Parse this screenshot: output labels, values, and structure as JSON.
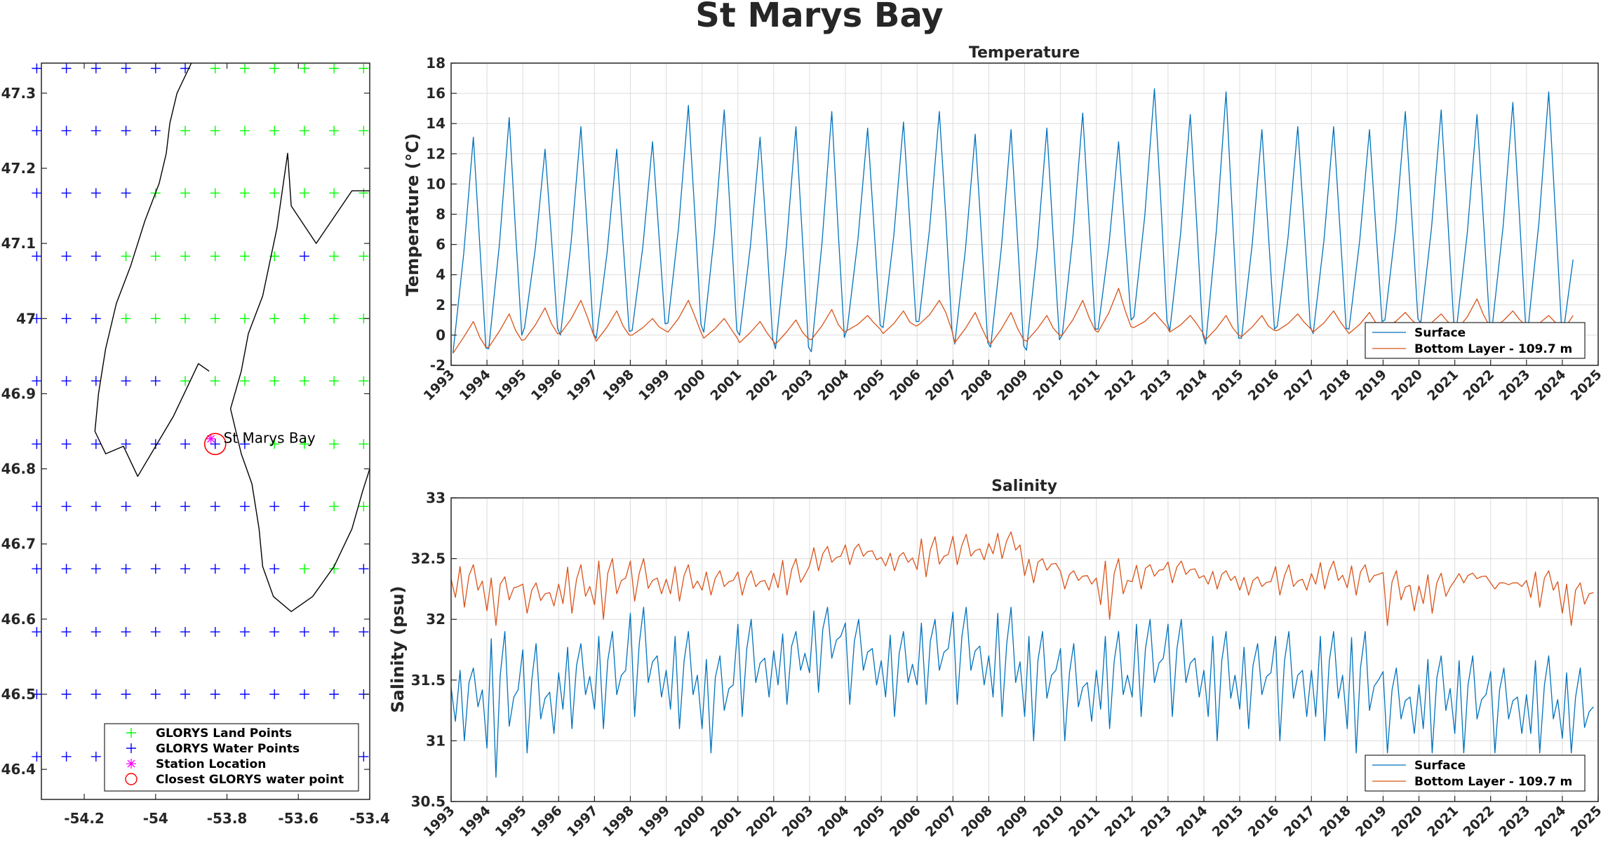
{
  "figure_title": "St Marys Bay",
  "colors": {
    "surface": "#0072BD",
    "bottom": "#D95319",
    "land": "#00FF00",
    "water": "#0000FF",
    "station": "#FF00FF",
    "closest": "#FF0000"
  },
  "chart_data": [
    {
      "type": "scatter",
      "xticks": [
        "-54.2",
        "-54",
        "-53.8",
        "-53.6",
        "-53.4"
      ],
      "yticks": [
        "47.3",
        "47.2",
        "47.1",
        "47",
        "46.9",
        "46.8",
        "46.7",
        "46.6",
        "46.5",
        "46.4"
      ],
      "xlim": [
        -54.32,
        -53.4
      ],
      "ylim": [
        46.36,
        47.34
      ],
      "grid": false,
      "legend_position": "bottom-right",
      "station_label": "St Marys Bay",
      "station": {
        "lon": -53.845,
        "lat": 46.84
      },
      "closest_point": {
        "lon": -53.833,
        "lat": 46.833
      },
      "grid_lons": [
        -54.333,
        -54.25,
        -54.167,
        -54.083,
        -54.0,
        -53.917,
        -53.833,
        -53.75,
        -53.667,
        -53.583,
        -53.5,
        -53.417
      ],
      "grid_lats": [
        47.333,
        47.25,
        47.167,
        47.083,
        47.0,
        46.917,
        46.833,
        46.75,
        46.667,
        46.583,
        46.5,
        46.417
      ],
      "land_mask": [
        [
          0,
          0,
          0,
          0,
          0,
          0,
          1,
          1,
          1,
          1,
          1,
          1
        ],
        [
          0,
          0,
          0,
          0,
          0,
          1,
          1,
          1,
          1,
          1,
          1,
          1
        ],
        [
          0,
          0,
          0,
          0,
          1,
          1,
          1,
          1,
          1,
          1,
          1,
          1
        ],
        [
          0,
          0,
          0,
          1,
          1,
          1,
          1,
          1,
          1,
          0,
          1,
          1
        ],
        [
          0,
          0,
          0,
          1,
          1,
          1,
          1,
          1,
          1,
          1,
          1,
          1
        ],
        [
          0,
          0,
          0,
          0,
          0,
          1,
          1,
          1,
          1,
          1,
          1,
          1
        ],
        [
          0,
          0,
          0,
          0,
          0,
          0,
          0,
          0,
          1,
          1,
          1,
          1
        ],
        [
          0,
          0,
          0,
          0,
          0,
          0,
          0,
          0,
          0,
          0,
          1,
          1
        ],
        [
          0,
          0,
          0,
          0,
          0,
          0,
          0,
          0,
          0,
          1,
          1,
          0
        ],
        [
          0,
          0,
          0,
          0,
          0,
          0,
          0,
          0,
          0,
          0,
          0,
          0
        ],
        [
          0,
          0,
          0,
          0,
          0,
          0,
          0,
          0,
          0,
          0,
          0,
          0
        ],
        [
          0,
          0,
          0,
          0,
          0,
          0,
          0,
          0,
          0,
          0,
          0,
          0
        ]
      ],
      "coastline_west": [
        [
          -53.9,
          47.34
        ],
        [
          -53.94,
          47.3
        ],
        [
          -53.96,
          47.26
        ],
        [
          -53.97,
          47.22
        ],
        [
          -53.99,
          47.18
        ],
        [
          -54.03,
          47.13
        ],
        [
          -54.07,
          47.07
        ],
        [
          -54.11,
          47.02
        ],
        [
          -54.14,
          46.96
        ],
        [
          -54.16,
          46.9
        ],
        [
          -54.17,
          46.85
        ],
        [
          -54.14,
          46.82
        ],
        [
          -54.09,
          46.83
        ],
        [
          -54.05,
          46.79
        ],
        [
          -54.0,
          46.83
        ],
        [
          -53.95,
          46.87
        ],
        [
          -53.92,
          46.9
        ],
        [
          -53.88,
          46.94
        ],
        [
          -53.85,
          46.93
        ]
      ],
      "coastline_east": [
        [
          -53.4,
          47.17
        ],
        [
          -53.45,
          47.17
        ],
        [
          -53.55,
          47.1
        ],
        [
          -53.62,
          47.15
        ],
        [
          -53.63,
          47.22
        ],
        [
          -53.66,
          47.12
        ],
        [
          -53.7,
          47.03
        ],
        [
          -53.74,
          46.98
        ],
        [
          -53.76,
          46.93
        ],
        [
          -53.79,
          46.88
        ],
        [
          -53.76,
          46.82
        ],
        [
          -53.73,
          46.78
        ],
        [
          -53.71,
          46.72
        ],
        [
          -53.7,
          46.67
        ],
        [
          -53.67,
          46.63
        ],
        [
          -53.62,
          46.61
        ],
        [
          -53.56,
          46.63
        ],
        [
          -53.5,
          46.67
        ],
        [
          -53.45,
          46.72
        ],
        [
          -53.42,
          46.77
        ],
        [
          -53.4,
          46.8
        ]
      ],
      "legend": [
        "GLORYS Land Points",
        "GLORYS Water Points",
        "Station Location",
        "Closest GLORYS water point"
      ]
    },
    {
      "type": "line",
      "title": "Temperature",
      "ylabel": "Temperature (°C)",
      "xlim": [
        1993,
        2025
      ],
      "ylim": [
        -2,
        18
      ],
      "yticks": [
        "18",
        "16",
        "14",
        "12",
        "10",
        "8",
        "6",
        "4",
        "2",
        "0",
        "-2"
      ],
      "xticks": [
        "1993",
        "1994",
        "1995",
        "1996",
        "1997",
        "1998",
        "1999",
        "2000",
        "2001",
        "2002",
        "2003",
        "2004",
        "2005",
        "2006",
        "2007",
        "2008",
        "2009",
        "2010",
        "2011",
        "2012",
        "2013",
        "2014",
        "2015",
        "2016",
        "2017",
        "2018",
        "2019",
        "2020",
        "2021",
        "2022",
        "2023",
        "2024",
        "2025"
      ],
      "grid": true,
      "legend_position": "bottom-right",
      "series": [
        {
          "name": "Surface",
          "annual_max": [
            13.1,
            14.4,
            12.3,
            13.8,
            12.3,
            12.8,
            15.2,
            14.9,
            13.1,
            13.8,
            14.8,
            13.7,
            14.1,
            14.8,
            13.3,
            13.6,
            13.7,
            14.7,
            12.8,
            16.3,
            14.6,
            16.1,
            13.6,
            13.8,
            13.8,
            13.6,
            14.8,
            14.9,
            14.6,
            15.4,
            16.1
          ],
          "annual_min": [
            -1.2,
            -0.9,
            0.5,
            0.0,
            -0.2,
            0.3,
            0.8,
            0.2,
            0.0,
            -0.9,
            -1.1,
            0.4,
            0.5,
            0.9,
            -0.6,
            -0.8,
            -1.0,
            0.0,
            0.4,
            1.2,
            0.3,
            -0.6,
            -0.2,
            0.6,
            0.1,
            0.4,
            1.0,
            0.8,
            0.5,
            0.7,
            0.6
          ],
          "end_value": 5.0
        },
        {
          "name": "Bottom Layer - 109.7 m",
          "annual_max": [
            0.9,
            1.4,
            1.8,
            2.3,
            1.6,
            1.1,
            2.3,
            1.1,
            0.9,
            1.0,
            1.7,
            1.3,
            1.6,
            2.3,
            1.5,
            1.5,
            1.3,
            2.3,
            3.1,
            1.5,
            1.3,
            1.3,
            1.3,
            1.4,
            1.6,
            1.5,
            1.5,
            1.4,
            2.4,
            1.6,
            1.3
          ],
          "annual_min": [
            -1.2,
            -0.8,
            -0.3,
            0.1,
            -0.4,
            0.0,
            0.2,
            -0.2,
            -0.5,
            -0.6,
            -0.3,
            0.3,
            0.1,
            0.7,
            -0.5,
            -0.6,
            -0.4,
            0.0,
            0.2,
            0.5,
            0.2,
            -0.3,
            -0.1,
            0.3,
            0.2,
            0.1,
            0.5,
            0.4,
            0.3,
            0.5,
            0.4
          ],
          "end_value": 1.3
        }
      ]
    },
    {
      "type": "line",
      "title": "Salinity",
      "ylabel": "Salinity (psu)",
      "xlim": [
        1993,
        2025
      ],
      "ylim": [
        30.5,
        33
      ],
      "yticks": [
        "33",
        "32.5",
        "32",
        "31.5",
        "31",
        "30.5"
      ],
      "xticks": [
        "1993",
        "1994",
        "1995",
        "1996",
        "1997",
        "1998",
        "1999",
        "2000",
        "2001",
        "2002",
        "2003",
        "2004",
        "2005",
        "2006",
        "2007",
        "2008",
        "2009",
        "2010",
        "2011",
        "2012",
        "2013",
        "2014",
        "2015",
        "2016",
        "2017",
        "2018",
        "2019",
        "2020",
        "2021",
        "2022",
        "2023",
        "2024",
        "2025"
      ],
      "grid": true,
      "legend_position": "bottom-right",
      "series": [
        {
          "name": "Surface",
          "annual_mean": [
            31.4,
            31.3,
            31.3,
            31.5,
            31.5,
            31.6,
            31.5,
            31.4,
            31.6,
            31.7,
            31.8,
            31.7,
            31.6,
            31.7,
            31.7,
            31.6,
            31.5,
            31.4,
            31.5,
            31.6,
            31.6,
            31.5,
            31.5,
            31.5,
            31.5,
            31.4,
            31.3,
            31.4,
            31.3,
            31.3,
            31.3,
            31.2
          ],
          "annual_max": [
            31.6,
            31.9,
            31.8,
            31.8,
            31.9,
            32.1,
            31.9,
            31.7,
            32.0,
            31.9,
            32.1,
            32.0,
            31.9,
            32.0,
            32.1,
            32.1,
            31.9,
            31.8,
            31.9,
            32.0,
            32.0,
            31.9,
            31.8,
            31.9,
            31.9,
            31.9,
            31.6,
            31.7,
            31.7,
            31.6,
            31.7,
            31.6
          ],
          "annual_min": [
            31.0,
            30.7,
            30.9,
            31.1,
            31.1,
            31.2,
            31.1,
            30.9,
            31.2,
            31.3,
            31.4,
            31.3,
            31.2,
            31.3,
            31.3,
            31.2,
            31.0,
            31.0,
            31.1,
            31.2,
            31.2,
            31.0,
            31.1,
            31.0,
            31.0,
            30.9,
            30.9,
            30.9,
            30.9,
            30.9,
            30.9,
            30.9
          ]
        },
        {
          "name": "Bottom Layer - 109.7 m",
          "annual_mean": [
            32.3,
            32.25,
            32.2,
            32.25,
            32.3,
            32.3,
            32.3,
            32.3,
            32.3,
            32.35,
            32.5,
            32.55,
            32.5,
            32.5,
            32.55,
            32.6,
            32.45,
            32.35,
            32.3,
            32.4,
            32.4,
            32.35,
            32.3,
            32.3,
            32.35,
            32.35,
            32.25,
            32.25,
            32.35,
            32.3,
            32.3,
            32.2
          ],
          "annual_max": [
            32.45,
            32.35,
            32.3,
            32.45,
            32.5,
            32.5,
            32.45,
            32.4,
            32.4,
            32.5,
            32.6,
            32.62,
            32.55,
            32.68,
            32.7,
            32.72,
            32.5,
            32.4,
            32.5,
            32.45,
            32.48,
            32.4,
            32.35,
            32.45,
            32.48,
            32.45,
            32.4,
            32.38,
            32.38,
            32.3,
            32.4,
            32.3
          ],
          "annual_min": [
            32.1,
            31.95,
            32.05,
            32.05,
            32.0,
            32.15,
            32.15,
            32.2,
            32.2,
            32.2,
            32.4,
            32.45,
            32.4,
            32.35,
            32.45,
            32.5,
            32.3,
            32.25,
            32.0,
            32.25,
            32.3,
            32.25,
            32.2,
            32.2,
            32.25,
            32.2,
            31.95,
            32.05,
            32.3,
            32.25,
            32.1,
            31.95
          ]
        }
      ]
    }
  ]
}
